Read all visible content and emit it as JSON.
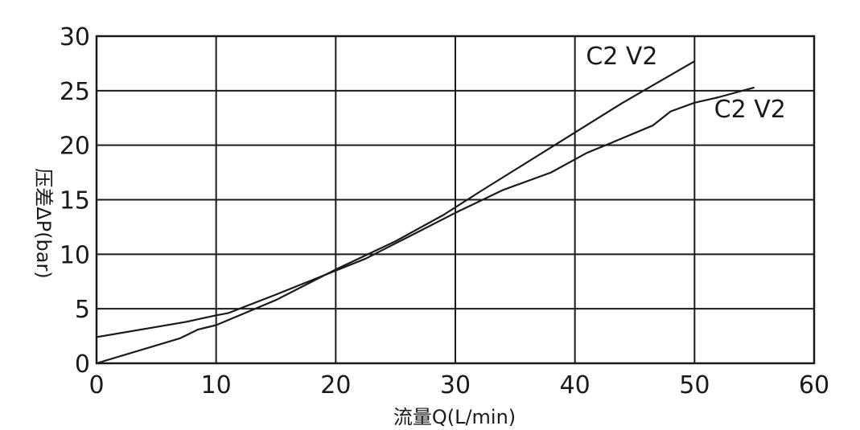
{
  "chart_data": {
    "type": "line",
    "xlabel": "流量Q(L/min)",
    "ylabel": "压差ΔP(bar)",
    "xlim": [
      0,
      60
    ],
    "ylim": [
      0,
      30
    ],
    "x_ticks": [
      0,
      10,
      20,
      30,
      40,
      50,
      60
    ],
    "y_ticks": [
      0,
      5,
      10,
      15,
      20,
      25,
      30
    ],
    "x_tick_labels": [
      "0",
      "10",
      "20",
      "30",
      "40",
      "50",
      "60"
    ],
    "y_tick_labels": [
      "0",
      "5",
      "10",
      "15",
      "20",
      "25",
      "30"
    ],
    "grid": true,
    "series": [
      {
        "label": "C2 V2",
        "points": [
          [
            0,
            0
          ],
          [
            7,
            2.3
          ],
          [
            8.5,
            3.1
          ],
          [
            10,
            3.5
          ],
          [
            15,
            5.8
          ],
          [
            20,
            8.6
          ],
          [
            25,
            11.2
          ],
          [
            29,
            13.6
          ],
          [
            32,
            15.7
          ],
          [
            38,
            19.8
          ],
          [
            44,
            23.9
          ],
          [
            50,
            27.7
          ]
        ]
      },
      {
        "label": "C2 V2",
        "points": [
          [
            0,
            2.4
          ],
          [
            7.5,
            3.8
          ],
          [
            10,
            4.4
          ],
          [
            11,
            4.6
          ],
          [
            15,
            6.3
          ],
          [
            20,
            8.5
          ],
          [
            22.5,
            9.6
          ],
          [
            25,
            11.0
          ],
          [
            30,
            13.8
          ],
          [
            34,
            15.9
          ],
          [
            38,
            17.5
          ],
          [
            41,
            19.3
          ],
          [
            43,
            20.2
          ],
          [
            46.5,
            21.8
          ],
          [
            48,
            23.1
          ],
          [
            50,
            23.9
          ],
          [
            52,
            24.4
          ],
          [
            55,
            25.3
          ]
        ]
      }
    ]
  }
}
